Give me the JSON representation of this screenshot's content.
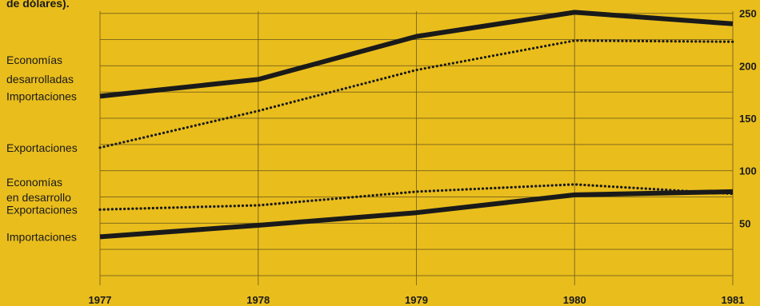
{
  "header_fragment": "de dólares).",
  "chart_data": {
    "type": "line",
    "x": [
      1977,
      1978,
      1979,
      1980,
      1981
    ],
    "ylim": [
      0,
      250
    ],
    "yticks": [
      50,
      100,
      150,
      200,
      250
    ],
    "grid": true,
    "groups": [
      {
        "label_lines": [
          "Economías",
          "desarrolladas"
        ]
      },
      {
        "label_lines": [
          "Economías",
          "en desarrollo"
        ]
      }
    ],
    "series": [
      {
        "name": "Importaciones",
        "group": "Economías desarrolladas",
        "style": "solid",
        "values": [
          171,
          187,
          228,
          251,
          240
        ]
      },
      {
        "name": "Exportaciones",
        "group": "Economías desarrolladas",
        "style": "dotted",
        "values": [
          122,
          157,
          196,
          224,
          223
        ]
      },
      {
        "name": "Exportaciones",
        "group": "Economías en desarrollo",
        "style": "dotted",
        "values": [
          63,
          67,
          80,
          87,
          78
        ]
      },
      {
        "name": "Importaciones",
        "group": "Economías en desarrollo",
        "style": "solid",
        "values": [
          37,
          48,
          60,
          77,
          80
        ]
      }
    ],
    "colors": {
      "background": "#e9bd1c",
      "ink": "#1a1a1a"
    }
  }
}
